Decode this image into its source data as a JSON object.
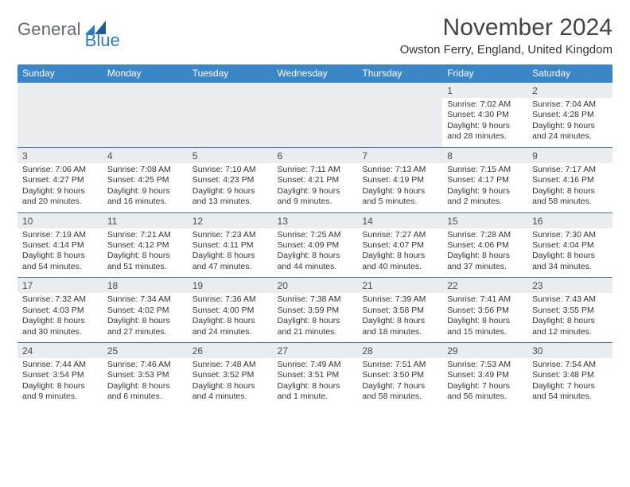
{
  "brand": {
    "name_part1": "General",
    "name_part2": "Blue",
    "text_color": "#5f6a72",
    "accent_color": "#2f7bbf"
  },
  "title": {
    "month": "November 2024",
    "location": "Owston Ferry, England, United Kingdom"
  },
  "colors": {
    "header_bg": "#3a86c8",
    "daynum_bg": "#e9edef",
    "row_border": "#3a6fa3"
  },
  "day_headers": [
    "Sunday",
    "Monday",
    "Tuesday",
    "Wednesday",
    "Thursday",
    "Friday",
    "Saturday"
  ],
  "weeks": [
    [
      null,
      null,
      null,
      null,
      null,
      {
        "n": "1",
        "sunrise": "Sunrise: 7:02 AM",
        "sunset": "Sunset: 4:30 PM",
        "day1": "Daylight: 9 hours",
        "day2": "and 28 minutes."
      },
      {
        "n": "2",
        "sunrise": "Sunrise: 7:04 AM",
        "sunset": "Sunset: 4:28 PM",
        "day1": "Daylight: 9 hours",
        "day2": "and 24 minutes."
      }
    ],
    [
      {
        "n": "3",
        "sunrise": "Sunrise: 7:06 AM",
        "sunset": "Sunset: 4:27 PM",
        "day1": "Daylight: 9 hours",
        "day2": "and 20 minutes."
      },
      {
        "n": "4",
        "sunrise": "Sunrise: 7:08 AM",
        "sunset": "Sunset: 4:25 PM",
        "day1": "Daylight: 9 hours",
        "day2": "and 16 minutes."
      },
      {
        "n": "5",
        "sunrise": "Sunrise: 7:10 AM",
        "sunset": "Sunset: 4:23 PM",
        "day1": "Daylight: 9 hours",
        "day2": "and 13 minutes."
      },
      {
        "n": "6",
        "sunrise": "Sunrise: 7:11 AM",
        "sunset": "Sunset: 4:21 PM",
        "day1": "Daylight: 9 hours",
        "day2": "and 9 minutes."
      },
      {
        "n": "7",
        "sunrise": "Sunrise: 7:13 AM",
        "sunset": "Sunset: 4:19 PM",
        "day1": "Daylight: 9 hours",
        "day2": "and 5 minutes."
      },
      {
        "n": "8",
        "sunrise": "Sunrise: 7:15 AM",
        "sunset": "Sunset: 4:17 PM",
        "day1": "Daylight: 9 hours",
        "day2": "and 2 minutes."
      },
      {
        "n": "9",
        "sunrise": "Sunrise: 7:17 AM",
        "sunset": "Sunset: 4:16 PM",
        "day1": "Daylight: 8 hours",
        "day2": "and 58 minutes."
      }
    ],
    [
      {
        "n": "10",
        "sunrise": "Sunrise: 7:19 AM",
        "sunset": "Sunset: 4:14 PM",
        "day1": "Daylight: 8 hours",
        "day2": "and 54 minutes."
      },
      {
        "n": "11",
        "sunrise": "Sunrise: 7:21 AM",
        "sunset": "Sunset: 4:12 PM",
        "day1": "Daylight: 8 hours",
        "day2": "and 51 minutes."
      },
      {
        "n": "12",
        "sunrise": "Sunrise: 7:23 AM",
        "sunset": "Sunset: 4:11 PM",
        "day1": "Daylight: 8 hours",
        "day2": "and 47 minutes."
      },
      {
        "n": "13",
        "sunrise": "Sunrise: 7:25 AM",
        "sunset": "Sunset: 4:09 PM",
        "day1": "Daylight: 8 hours",
        "day2": "and 44 minutes."
      },
      {
        "n": "14",
        "sunrise": "Sunrise: 7:27 AM",
        "sunset": "Sunset: 4:07 PM",
        "day1": "Daylight: 8 hours",
        "day2": "and 40 minutes."
      },
      {
        "n": "15",
        "sunrise": "Sunrise: 7:28 AM",
        "sunset": "Sunset: 4:06 PM",
        "day1": "Daylight: 8 hours",
        "day2": "and 37 minutes."
      },
      {
        "n": "16",
        "sunrise": "Sunrise: 7:30 AM",
        "sunset": "Sunset: 4:04 PM",
        "day1": "Daylight: 8 hours",
        "day2": "and 34 minutes."
      }
    ],
    [
      {
        "n": "17",
        "sunrise": "Sunrise: 7:32 AM",
        "sunset": "Sunset: 4:03 PM",
        "day1": "Daylight: 8 hours",
        "day2": "and 30 minutes."
      },
      {
        "n": "18",
        "sunrise": "Sunrise: 7:34 AM",
        "sunset": "Sunset: 4:02 PM",
        "day1": "Daylight: 8 hours",
        "day2": "and 27 minutes."
      },
      {
        "n": "19",
        "sunrise": "Sunrise: 7:36 AM",
        "sunset": "Sunset: 4:00 PM",
        "day1": "Daylight: 8 hours",
        "day2": "and 24 minutes."
      },
      {
        "n": "20",
        "sunrise": "Sunrise: 7:38 AM",
        "sunset": "Sunset: 3:59 PM",
        "day1": "Daylight: 8 hours",
        "day2": "and 21 minutes."
      },
      {
        "n": "21",
        "sunrise": "Sunrise: 7:39 AM",
        "sunset": "Sunset: 3:58 PM",
        "day1": "Daylight: 8 hours",
        "day2": "and 18 minutes."
      },
      {
        "n": "22",
        "sunrise": "Sunrise: 7:41 AM",
        "sunset": "Sunset: 3:56 PM",
        "day1": "Daylight: 8 hours",
        "day2": "and 15 minutes."
      },
      {
        "n": "23",
        "sunrise": "Sunrise: 7:43 AM",
        "sunset": "Sunset: 3:55 PM",
        "day1": "Daylight: 8 hours",
        "day2": "and 12 minutes."
      }
    ],
    [
      {
        "n": "24",
        "sunrise": "Sunrise: 7:44 AM",
        "sunset": "Sunset: 3:54 PM",
        "day1": "Daylight: 8 hours",
        "day2": "and 9 minutes."
      },
      {
        "n": "25",
        "sunrise": "Sunrise: 7:46 AM",
        "sunset": "Sunset: 3:53 PM",
        "day1": "Daylight: 8 hours",
        "day2": "and 6 minutes."
      },
      {
        "n": "26",
        "sunrise": "Sunrise: 7:48 AM",
        "sunset": "Sunset: 3:52 PM",
        "day1": "Daylight: 8 hours",
        "day2": "and 4 minutes."
      },
      {
        "n": "27",
        "sunrise": "Sunrise: 7:49 AM",
        "sunset": "Sunset: 3:51 PM",
        "day1": "Daylight: 8 hours",
        "day2": "and 1 minute."
      },
      {
        "n": "28",
        "sunrise": "Sunrise: 7:51 AM",
        "sunset": "Sunset: 3:50 PM",
        "day1": "Daylight: 7 hours",
        "day2": "and 58 minutes."
      },
      {
        "n": "29",
        "sunrise": "Sunrise: 7:53 AM",
        "sunset": "Sunset: 3:49 PM",
        "day1": "Daylight: 7 hours",
        "day2": "and 56 minutes."
      },
      {
        "n": "30",
        "sunrise": "Sunrise: 7:54 AM",
        "sunset": "Sunset: 3:48 PM",
        "day1": "Daylight: 7 hours",
        "day2": "and 54 minutes."
      }
    ]
  ]
}
